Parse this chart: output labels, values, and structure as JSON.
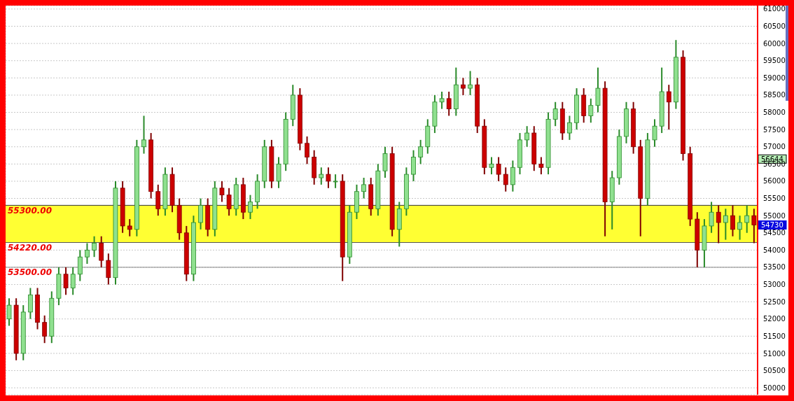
{
  "chart_data": {
    "type": "candlestick",
    "categories": [
      null,
      null,
      null,
      null,
      null,
      null,
      null,
      null,
      null,
      null,
      null,
      null,
      null,
      null,
      null,
      null,
      null,
      null,
      null,
      null,
      null,
      null,
      null,
      null,
      null,
      null,
      null,
      null,
      null,
      null,
      null,
      null,
      null,
      null,
      null,
      null,
      null,
      null,
      null,
      null,
      null,
      null,
      null,
      null,
      null,
      null,
      null,
      null,
      null,
      null,
      null,
      null,
      null,
      null,
      null,
      null,
      null,
      null,
      null,
      null,
      null,
      null,
      null,
      null,
      null,
      null,
      null,
      null,
      null,
      null,
      null,
      null,
      null,
      null,
      null,
      null,
      null,
      null,
      null,
      null,
      null,
      null,
      null,
      null,
      null,
      null,
      null,
      null,
      null,
      null,
      null,
      null,
      null,
      null,
      null,
      null,
      null,
      null,
      null,
      null,
      null,
      null,
      null,
      null,
      null,
      null
    ],
    "ohlc": [
      [
        52000,
        52600,
        51800,
        52400
      ],
      [
        52400,
        52600,
        50800,
        51000
      ],
      [
        51000,
        52400,
        50800,
        52200
      ],
      [
        52200,
        52900,
        52000,
        52700
      ],
      [
        52700,
        52900,
        51700,
        51900
      ],
      [
        51900,
        52100,
        51300,
        51500
      ],
      [
        51500,
        52800,
        51300,
        52600
      ],
      [
        52600,
        53500,
        52400,
        53300
      ],
      [
        53300,
        53500,
        52700,
        52900
      ],
      [
        52900,
        53500,
        52700,
        53300
      ],
      [
        53300,
        54000,
        53100,
        53800
      ],
      [
        53800,
        54200,
        53600,
        54000
      ],
      [
        54000,
        54400,
        53800,
        54200
      ],
      [
        54200,
        54400,
        53500,
        53700
      ],
      [
        53700,
        53900,
        53000,
        53200
      ],
      [
        53200,
        56000,
        53000,
        55800
      ],
      [
        55800,
        56000,
        54500,
        54700
      ],
      [
        54700,
        54900,
        54400,
        54600
      ],
      [
        54600,
        57200,
        54400,
        57000
      ],
      [
        57000,
        57900,
        56800,
        57200
      ],
      [
        57200,
        57400,
        55500,
        55700
      ],
      [
        55700,
        55900,
        55000,
        55200
      ],
      [
        55200,
        56400,
        55000,
        56200
      ],
      [
        56200,
        56400,
        55100,
        55300
      ],
      [
        55300,
        55500,
        54300,
        54500
      ],
      [
        54500,
        54700,
        53100,
        53300
      ],
      [
        53300,
        55000,
        53100,
        54800
      ],
      [
        54800,
        55500,
        54600,
        55300
      ],
      [
        55300,
        55500,
        54400,
        54600
      ],
      [
        54600,
        56000,
        54400,
        55800
      ],
      [
        55800,
        56000,
        55400,
        55600
      ],
      [
        55600,
        55800,
        55000,
        55200
      ],
      [
        55200,
        56100,
        55000,
        55900
      ],
      [
        55900,
        56100,
        54900,
        55100
      ],
      [
        55100,
        55600,
        54900,
        55400
      ],
      [
        55400,
        56200,
        55200,
        56000
      ],
      [
        56000,
        57200,
        55800,
        57000
      ],
      [
        57000,
        57200,
        55800,
        56000
      ],
      [
        56000,
        56700,
        55800,
        56500
      ],
      [
        56500,
        58000,
        56300,
        57800
      ],
      [
        57800,
        58800,
        57600,
        58500
      ],
      [
        58500,
        58700,
        56900,
        57100
      ],
      [
        57100,
        57300,
        56500,
        56700
      ],
      [
        56700,
        56900,
        55900,
        56100
      ],
      [
        56100,
        56400,
        55900,
        56200
      ],
      [
        56200,
        56400,
        55800,
        56000
      ],
      [
        56000,
        56200,
        55800,
        56000
      ],
      [
        56000,
        56200,
        53100,
        53800
      ],
      [
        53800,
        55300,
        53600,
        55100
      ],
      [
        55100,
        55900,
        54900,
        55700
      ],
      [
        55700,
        56100,
        55500,
        55900
      ],
      [
        55900,
        56100,
        55000,
        55200
      ],
      [
        55200,
        56500,
        55000,
        56300
      ],
      [
        56300,
        57000,
        56100,
        56800
      ],
      [
        56800,
        57000,
        54400,
        54600
      ],
      [
        54600,
        55400,
        54100,
        55200
      ],
      [
        55200,
        56400,
        55000,
        56200
      ],
      [
        56200,
        56900,
        56000,
        56700
      ],
      [
        56700,
        57200,
        56500,
        57000
      ],
      [
        57000,
        57800,
        56800,
        57600
      ],
      [
        57600,
        58500,
        57400,
        58300
      ],
      [
        58300,
        58600,
        58100,
        58400
      ],
      [
        58400,
        58600,
        57900,
        58100
      ],
      [
        58100,
        59300,
        57900,
        58800
      ],
      [
        58800,
        59000,
        58500,
        58700
      ],
      [
        58700,
        59200,
        58500,
        58800
      ],
      [
        58800,
        59000,
        57400,
        57600
      ],
      [
        57600,
        57800,
        56200,
        56400
      ],
      [
        56400,
        56700,
        56200,
        56500
      ],
      [
        56500,
        56700,
        56000,
        56200
      ],
      [
        56200,
        56400,
        55700,
        55900
      ],
      [
        55900,
        56600,
        55700,
        56400
      ],
      [
        56400,
        57400,
        56200,
        57200
      ],
      [
        57200,
        57600,
        57000,
        57400
      ],
      [
        57400,
        57600,
        56300,
        56500
      ],
      [
        56500,
        56700,
        56200,
        56400
      ],
      [
        56400,
        58000,
        56200,
        57800
      ],
      [
        57800,
        58300,
        57600,
        58100
      ],
      [
        58100,
        58300,
        57200,
        57400
      ],
      [
        57400,
        57900,
        57200,
        57700
      ],
      [
        57700,
        58700,
        57500,
        58500
      ],
      [
        58500,
        58700,
        57700,
        57900
      ],
      [
        57900,
        58400,
        57700,
        58200
      ],
      [
        58200,
        59300,
        58000,
        58700
      ],
      [
        58700,
        58900,
        54400,
        55400
      ],
      [
        55400,
        56300,
        54600,
        56100
      ],
      [
        56100,
        57500,
        55900,
        57300
      ],
      [
        57300,
        58300,
        57100,
        58100
      ],
      [
        58100,
        58300,
        56800,
        57000
      ],
      [
        57000,
        57200,
        54400,
        55500
      ],
      [
        55500,
        57400,
        55300,
        57200
      ],
      [
        57200,
        57800,
        57000,
        57600
      ],
      [
        57600,
        59300,
        57400,
        58600
      ],
      [
        58600,
        58800,
        57500,
        58300
      ],
      [
        58300,
        60100,
        58100,
        59600
      ],
      [
        59600,
        59800,
        56600,
        56800
      ],
      [
        56800,
        57000,
        54700,
        54900
      ],
      [
        54900,
        55100,
        53500,
        54000
      ],
      [
        54000,
        54900,
        53500,
        54700
      ],
      [
        54700,
        55400,
        54500,
        55100
      ],
      [
        55100,
        55300,
        54200,
        54800
      ],
      [
        54800,
        55200,
        54300,
        55000
      ],
      [
        55000,
        55300,
        54400,
        54600
      ],
      [
        54600,
        55000,
        54300,
        54800
      ],
      [
        54800,
        55300,
        54500,
        55000
      ],
      [
        55000,
        55200,
        54200,
        54730
      ]
    ],
    "ylim": [
      49800,
      61100
    ],
    "yticks": [
      50000,
      50500,
      51000,
      51500,
      52000,
      52500,
      53000,
      53500,
      54000,
      54500,
      55000,
      55500,
      56000,
      56500,
      57000,
      57500,
      58000,
      58500,
      59000,
      59500,
      60000,
      60500,
      61000
    ],
    "tick_labels": "y",
    "grid": true,
    "ref_lines": [
      {
        "axis": "y",
        "value": 55300,
        "label": "55300.00",
        "color": "#333333"
      },
      {
        "axis": "y",
        "value": 54220,
        "label": "54220.00",
        "color": "#555555"
      },
      {
        "axis": "y",
        "value": 53500,
        "label": "53500.00",
        "color": "#888888"
      }
    ],
    "bands": [
      {
        "axis": "y",
        "from": 54220,
        "to": 55300,
        "color": "#ffff33"
      }
    ],
    "annotations": [
      {
        "text": "56644",
        "y": 56644
      },
      {
        "text": "54730",
        "y": 54730
      }
    ]
  }
}
